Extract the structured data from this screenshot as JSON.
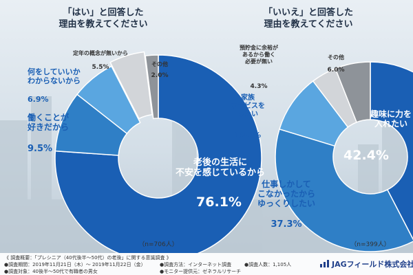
{
  "chart_data": [
    {
      "type": "pie",
      "title": "「はい」と回答した\n理由を教えてください",
      "sample": "（n=706人）",
      "slices": [
        {
          "label": "老後の生活に\n不安を感じているから",
          "value": 76.1,
          "color": "#1a5fb4"
        },
        {
          "label": "働くことが\n好きだから",
          "value": 9.5,
          "color": "#2f7fc6"
        },
        {
          "label": "何をしていいか\nわからないから",
          "value": 6.9,
          "color": "#5aa6e0"
        },
        {
          "label": "定年の概念が無いから",
          "value": 5.5,
          "color": "#d2d5d9"
        },
        {
          "label": "その他",
          "value": 2.0,
          "color": "#8e9399"
        }
      ]
    },
    {
      "type": "pie",
      "title": "「いいえ」と回答した\n理由を教えてください",
      "sample": "（n=399人）",
      "slices": [
        {
          "label": "趣味に力を\n入れたい",
          "value": 42.4,
          "color": "#1a5fb4"
        },
        {
          "label": "仕事しかして\nこなかったから\nゆっくりしたい",
          "value": 37.3,
          "color": "#2f7fc6"
        },
        {
          "label": "家族\nサービスを\nしたい",
          "value": 10.0,
          "color": "#5aa6e0"
        },
        {
          "label": "預貯金に余裕が\nあるから働く\n必要が無い",
          "value": 4.3,
          "color": "#d2d5d9"
        },
        {
          "label": "その他",
          "value": 6.0,
          "color": "#8e9399"
        }
      ]
    }
  ],
  "footer": {
    "l1": "《 調査概要：「プレシニア（40代後半〜50代）の老後」に関する意識調査 》",
    "l2a": "●調査期間：2019年11月21日（木）〜 2019年11月22日（金）",
    "l2b": "●調査方法：インターネット調査",
    "l2c": "●調査人数：1,105人",
    "l3a": "●調査対象：40後半〜50代で有職者の男女",
    "l3b": "●モニター提供元：ゼネラルリサーチ"
  },
  "logo": "JAGフィールド株式会社"
}
